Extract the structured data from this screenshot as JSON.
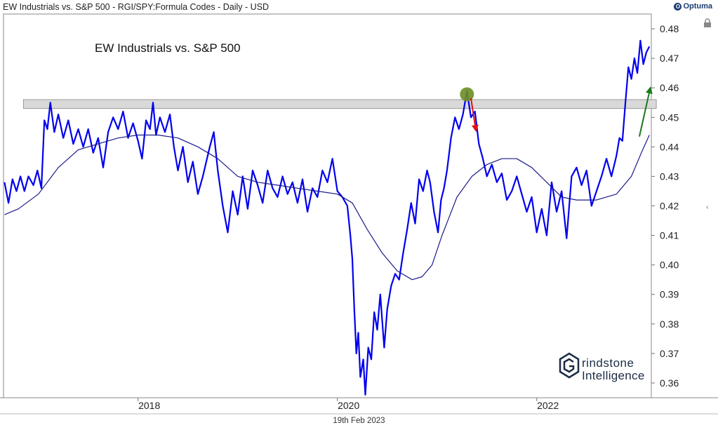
{
  "header": {
    "title": "EW Industrials vs. S&P 500 - RGI/SPY:Formula Codes - Daily - USD",
    "brand": "Optuma"
  },
  "footer": {
    "date": "19th Feb 2023"
  },
  "watermark": {
    "line1": "rindstone",
    "line2": "Intelligence"
  },
  "colors": {
    "price": "#0000ee",
    "ma": "#1a1a8c",
    "band": "#d9d9d9",
    "up_arrow": "#1a7a1a",
    "down_arrow": "#e01010",
    "marker": "#6b8e23"
  },
  "chart_data": {
    "type": "line",
    "title": "EW Industrials vs. S&P 500",
    "x_tick_labels": [
      "2018",
      "2020",
      "2022"
    ],
    "y_tick_labels": [
      "0.36",
      "0.37",
      "0.38",
      "0.39",
      "0.40",
      "0.41",
      "0.42",
      "0.43",
      "0.44",
      "0.45",
      "0.46",
      "0.47",
      "0.48"
    ],
    "ylim": [
      0.355,
      0.485
    ],
    "xlim": [
      2016.65,
      2023.15
    ],
    "resistance_band": [
      0.453,
      0.456
    ],
    "series": [
      {
        "style": "price",
        "points": [
          [
            2016.66,
            0.428
          ],
          [
            2016.7,
            0.421
          ],
          [
            2016.74,
            0.429
          ],
          [
            2016.78,
            0.425
          ],
          [
            2016.82,
            0.43
          ],
          [
            2016.86,
            0.425
          ],
          [
            2016.9,
            0.43
          ],
          [
            2016.95,
            0.427
          ],
          [
            2016.99,
            0.432
          ],
          [
            2017.03,
            0.426
          ],
          [
            2017.06,
            0.449
          ],
          [
            2017.09,
            0.446
          ],
          [
            2017.12,
            0.455
          ],
          [
            2017.16,
            0.445
          ],
          [
            2017.2,
            0.451
          ],
          [
            2017.25,
            0.443
          ],
          [
            2017.3,
            0.449
          ],
          [
            2017.35,
            0.441
          ],
          [
            2017.4,
            0.446
          ],
          [
            2017.45,
            0.44
          ],
          [
            2017.5,
            0.446
          ],
          [
            2017.55,
            0.438
          ],
          [
            2017.6,
            0.443
          ],
          [
            2017.65,
            0.433
          ],
          [
            2017.7,
            0.445
          ],
          [
            2017.75,
            0.45
          ],
          [
            2017.8,
            0.446
          ],
          [
            2017.85,
            0.452
          ],
          [
            2017.9,
            0.443
          ],
          [
            2017.95,
            0.448
          ],
          [
            2018.0,
            0.442
          ],
          [
            2018.04,
            0.436
          ],
          [
            2018.08,
            0.449
          ],
          [
            2018.12,
            0.446
          ],
          [
            2018.15,
            0.455
          ],
          [
            2018.18,
            0.444
          ],
          [
            2018.22,
            0.45
          ],
          [
            2018.27,
            0.445
          ],
          [
            2018.32,
            0.451
          ],
          [
            2018.36,
            0.44
          ],
          [
            2018.4,
            0.432
          ],
          [
            2018.45,
            0.44
          ],
          [
            2018.5,
            0.428
          ],
          [
            2018.55,
            0.435
          ],
          [
            2018.6,
            0.424
          ],
          [
            2018.65,
            0.43
          ],
          [
            2018.72,
            0.44
          ],
          [
            2018.76,
            0.445
          ],
          [
            2018.8,
            0.432
          ],
          [
            2018.85,
            0.42
          ],
          [
            2018.9,
            0.411
          ],
          [
            2018.95,
            0.425
          ],
          [
            2019.0,
            0.417
          ],
          [
            2019.05,
            0.43
          ],
          [
            2019.1,
            0.419
          ],
          [
            2019.15,
            0.432
          ],
          [
            2019.2,
            0.427
          ],
          [
            2019.25,
            0.421
          ],
          [
            2019.3,
            0.432
          ],
          [
            2019.35,
            0.426
          ],
          [
            2019.4,
            0.423
          ],
          [
            2019.45,
            0.43
          ],
          [
            2019.5,
            0.424
          ],
          [
            2019.55,
            0.428
          ],
          [
            2019.6,
            0.421
          ],
          [
            2019.65,
            0.429
          ],
          [
            2019.7,
            0.418
          ],
          [
            2019.75,
            0.426
          ],
          [
            2019.8,
            0.423
          ],
          [
            2019.85,
            0.432
          ],
          [
            2019.9,
            0.428
          ],
          [
            2019.95,
            0.436
          ],
          [
            2020.0,
            0.425
          ],
          [
            2020.05,
            0.423
          ],
          [
            2020.1,
            0.42
          ],
          [
            2020.13,
            0.41
          ],
          [
            2020.15,
            0.402
          ],
          [
            2020.17,
            0.385
          ],
          [
            2020.19,
            0.37
          ],
          [
            2020.21,
            0.377
          ],
          [
            2020.23,
            0.362
          ],
          [
            2020.26,
            0.368
          ],
          [
            2020.28,
            0.356
          ],
          [
            2020.31,
            0.372
          ],
          [
            2020.34,
            0.368
          ],
          [
            2020.37,
            0.384
          ],
          [
            2020.4,
            0.378
          ],
          [
            2020.43,
            0.39
          ],
          [
            2020.47,
            0.372
          ],
          [
            2020.5,
            0.385
          ],
          [
            2020.54,
            0.393
          ],
          [
            2020.58,
            0.397
          ],
          [
            2020.62,
            0.395
          ],
          [
            2020.66,
            0.404
          ],
          [
            2020.7,
            0.412
          ],
          [
            2020.74,
            0.421
          ],
          [
            2020.78,
            0.414
          ],
          [
            2020.82,
            0.429
          ],
          [
            2020.86,
            0.425
          ],
          [
            2020.9,
            0.432
          ],
          [
            2020.93,
            0.428
          ],
          [
            2020.97,
            0.418
          ],
          [
            2021.01,
            0.411
          ],
          [
            2021.04,
            0.422
          ],
          [
            2021.07,
            0.426
          ],
          [
            2021.1,
            0.432
          ],
          [
            2021.14,
            0.443
          ],
          [
            2021.18,
            0.45
          ],
          [
            2021.22,
            0.446
          ],
          [
            2021.26,
            0.451
          ],
          [
            2021.3,
            0.459
          ],
          [
            2021.34,
            0.45
          ],
          [
            2021.38,
            0.452
          ],
          [
            2021.42,
            0.441
          ],
          [
            2021.46,
            0.436
          ],
          [
            2021.5,
            0.43
          ],
          [
            2021.55,
            0.434
          ],
          [
            2021.6,
            0.428
          ],
          [
            2021.65,
            0.431
          ],
          [
            2021.7,
            0.422
          ],
          [
            2021.75,
            0.425
          ],
          [
            2021.8,
            0.43
          ],
          [
            2021.85,
            0.424
          ],
          [
            2021.9,
            0.418
          ],
          [
            2021.95,
            0.423
          ],
          [
            2022.0,
            0.411
          ],
          [
            2022.05,
            0.419
          ],
          [
            2022.1,
            0.41
          ],
          [
            2022.15,
            0.428
          ],
          [
            2022.2,
            0.418
          ],
          [
            2022.25,
            0.425
          ],
          [
            2022.3,
            0.409
          ],
          [
            2022.35,
            0.43
          ],
          [
            2022.4,
            0.433
          ],
          [
            2022.45,
            0.427
          ],
          [
            2022.5,
            0.432
          ],
          [
            2022.55,
            0.42
          ],
          [
            2022.6,
            0.425
          ],
          [
            2022.65,
            0.43
          ],
          [
            2022.7,
            0.436
          ],
          [
            2022.75,
            0.43
          ],
          [
            2022.8,
            0.437
          ],
          [
            2022.83,
            0.443
          ],
          [
            2022.86,
            0.442
          ],
          [
            2022.89,
            0.455
          ],
          [
            2022.92,
            0.467
          ],
          [
            2022.95,
            0.463
          ],
          [
            2022.98,
            0.47
          ],
          [
            2023.01,
            0.465
          ],
          [
            2023.04,
            0.476
          ],
          [
            2023.07,
            0.468
          ],
          [
            2023.1,
            0.472
          ],
          [
            2023.13,
            0.474
          ]
        ]
      },
      {
        "style": "moving_average",
        "points": [
          [
            2016.66,
            0.417
          ],
          [
            2016.8,
            0.419
          ],
          [
            2017.0,
            0.424
          ],
          [
            2017.2,
            0.433
          ],
          [
            2017.4,
            0.439
          ],
          [
            2017.6,
            0.441
          ],
          [
            2017.8,
            0.443
          ],
          [
            2018.0,
            0.444
          ],
          [
            2018.2,
            0.444
          ],
          [
            2018.4,
            0.443
          ],
          [
            2018.6,
            0.44
          ],
          [
            2018.8,
            0.436
          ],
          [
            2019.0,
            0.43
          ],
          [
            2019.2,
            0.428
          ],
          [
            2019.4,
            0.427
          ],
          [
            2019.6,
            0.426
          ],
          [
            2019.8,
            0.425
          ],
          [
            2020.0,
            0.424
          ],
          [
            2020.15,
            0.421
          ],
          [
            2020.3,
            0.412
          ],
          [
            2020.45,
            0.404
          ],
          [
            2020.6,
            0.398
          ],
          [
            2020.75,
            0.395
          ],
          [
            2020.85,
            0.396
          ],
          [
            2020.95,
            0.4
          ],
          [
            2021.05,
            0.41
          ],
          [
            2021.2,
            0.423
          ],
          [
            2021.35,
            0.43
          ],
          [
            2021.5,
            0.434
          ],
          [
            2021.65,
            0.436
          ],
          [
            2021.8,
            0.436
          ],
          [
            2021.95,
            0.433
          ],
          [
            2022.1,
            0.428
          ],
          [
            2022.25,
            0.423
          ],
          [
            2022.4,
            0.422
          ],
          [
            2022.6,
            0.422
          ],
          [
            2022.8,
            0.424
          ],
          [
            2022.95,
            0.43
          ],
          [
            2023.05,
            0.438
          ],
          [
            2023.13,
            0.444
          ]
        ]
      }
    ],
    "annotations": [
      {
        "type": "marker",
        "x": 2021.3,
        "y": 0.4578
      },
      {
        "type": "arrow",
        "direction": "down",
        "from": [
          2021.34,
          0.4565
        ],
        "to": [
          2021.39,
          0.4455
        ]
      },
      {
        "type": "arrow",
        "direction": "up",
        "from": [
          2023.03,
          0.4435
        ],
        "to": [
          2023.14,
          0.46
        ]
      }
    ]
  }
}
